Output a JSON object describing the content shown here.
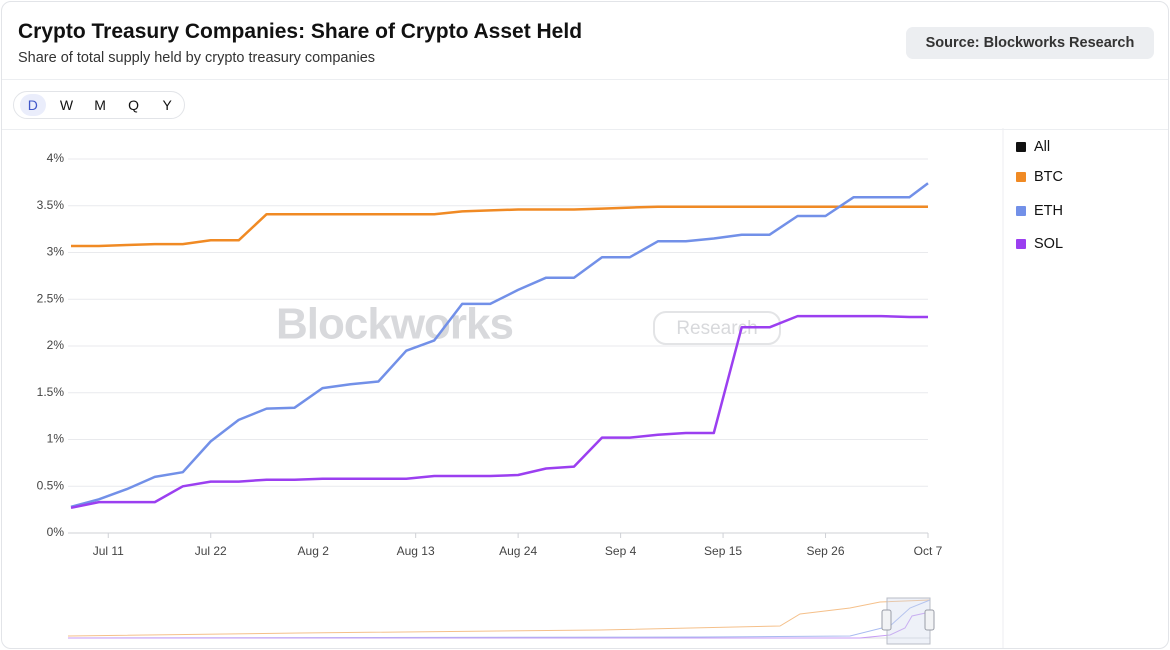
{
  "header": {
    "title": "Crypto Treasury Companies: Share of Crypto Asset Held",
    "subtitle": "Share of total supply held by crypto treasury companies",
    "source": "Source: Blockworks Research"
  },
  "periods": [
    "D",
    "W",
    "M",
    "Q",
    "Y"
  ],
  "selected_period": 0,
  "watermark": {
    "brand": "Blockworks",
    "tag": "Research"
  },
  "chart_data": {
    "type": "line",
    "x": [
      "Jul 7",
      "Jul 10",
      "Jul 13",
      "Jul 16",
      "Jul 19",
      "Jul 22",
      "Jul 25",
      "Jul 28",
      "Jul 31",
      "Aug 3",
      "Aug 6",
      "Aug 9",
      "Aug 12",
      "Aug 15",
      "Aug 18",
      "Aug 21",
      "Aug 24",
      "Aug 27",
      "Aug 30",
      "Sep 2",
      "Sep 5",
      "Sep 8",
      "Sep 11",
      "Sep 14",
      "Sep 17",
      "Sep 20",
      "Sep 23",
      "Sep 26",
      "Sep 29",
      "Oct 2",
      "Oct 5",
      "Oct 7"
    ],
    "xlim": [
      "Jul 7",
      "Oct 7"
    ],
    "xticks": [
      "Jul 11",
      "Jul 22",
      "Aug 2",
      "Aug 13",
      "Aug 24",
      "Sep 4",
      "Sep 15",
      "Sep 26",
      "Oct 7"
    ],
    "ylim": [
      0,
      4
    ],
    "yticks": [
      {
        "value": 0,
        "label": "0%"
      },
      {
        "value": 0.5,
        "label": "0.5%"
      },
      {
        "value": 1,
        "label": "1%"
      },
      {
        "value": 1.5,
        "label": "1.5%"
      },
      {
        "value": 2,
        "label": "2%"
      },
      {
        "value": 2.5,
        "label": "2.5%"
      },
      {
        "value": 3,
        "label": "3%"
      },
      {
        "value": 3.5,
        "label": "3.5%"
      },
      {
        "value": 4,
        "label": "4%"
      }
    ],
    "grid": true,
    "legend_extra": {
      "label": "All",
      "color": "#111111"
    },
    "series": [
      {
        "name": "BTC",
        "color": "#f08a24",
        "values": [
          3.07,
          3.07,
          3.08,
          3.09,
          3.09,
          3.13,
          3.13,
          3.41,
          3.41,
          3.41,
          3.41,
          3.41,
          3.41,
          3.41,
          3.44,
          3.45,
          3.46,
          3.46,
          3.46,
          3.47,
          3.48,
          3.49,
          3.49,
          3.49,
          3.49,
          3.49,
          3.49,
          3.49,
          3.49,
          3.49,
          3.49,
          3.49
        ]
      },
      {
        "name": "ETH",
        "color": "#7290e8",
        "values": [
          0.28,
          0.36,
          0.47,
          0.6,
          0.65,
          0.98,
          1.21,
          1.33,
          1.34,
          1.55,
          1.59,
          1.62,
          1.95,
          2.06,
          2.45,
          2.45,
          2.6,
          2.73,
          2.73,
          2.95,
          2.95,
          3.12,
          3.12,
          3.15,
          3.19,
          3.19,
          3.39,
          3.39,
          3.59,
          3.59,
          3.59,
          3.74
        ]
      },
      {
        "name": "SOL",
        "color": "#9b3ff0",
        "values": [
          0.27,
          0.33,
          0.33,
          0.33,
          0.5,
          0.55,
          0.55,
          0.57,
          0.57,
          0.58,
          0.58,
          0.58,
          0.58,
          0.61,
          0.61,
          0.61,
          0.62,
          0.69,
          0.71,
          1.02,
          1.02,
          1.05,
          1.07,
          1.07,
          2.2,
          2.2,
          2.32,
          2.32,
          2.32,
          2.32,
          2.31,
          2.31
        ]
      }
    ]
  }
}
